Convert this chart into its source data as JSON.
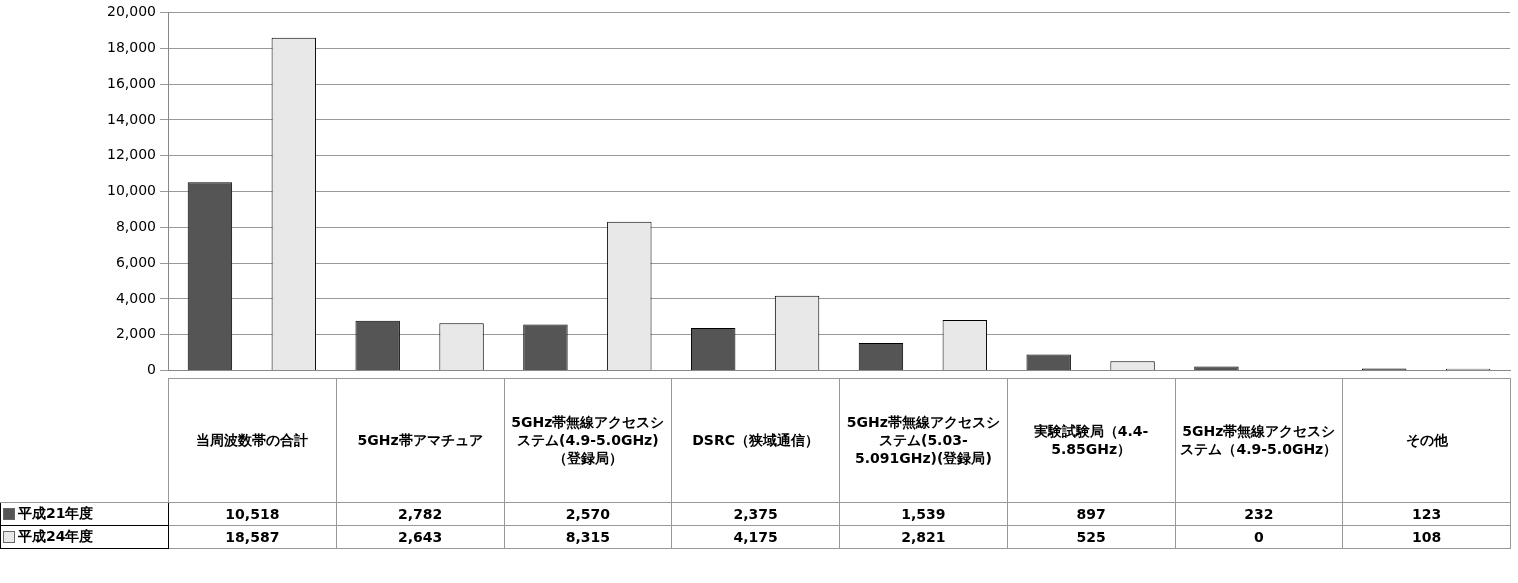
{
  "chart_data": {
    "type": "bar",
    "categories": [
      "当周波数帯の合計",
      "5GHz帯アマチュア",
      "5GHz帯無線アクセスシステム(4.9-5.0GHz)（登録局）",
      "DSRC（狭域通信）",
      "5GHz帯無線アクセスシステム(5.03-5.091GHz)(登録局)",
      "実験試験局（4.4-5.85GHz）",
      "5GHz帯無線アクセスシステム（4.9-5.0GHz）",
      "その他"
    ],
    "series": [
      {
        "name": "平成21年度",
        "color": "#555555",
        "values": [
          10518,
          2782,
          2570,
          2375,
          1539,
          897,
          232,
          123
        ],
        "value_labels": [
          "10,518",
          "2,782",
          "2,570",
          "2,375",
          "1,539",
          "897",
          "232",
          "123"
        ]
      },
      {
        "name": "平成24年度",
        "color": "#e8e8e8",
        "values": [
          18587,
          2643,
          8315,
          4175,
          2821,
          525,
          0,
          108
        ],
        "value_labels": [
          "18,587",
          "2,643",
          "8,315",
          "4,175",
          "2,821",
          "525",
          "0",
          "108"
        ]
      }
    ],
    "ylim": [
      0,
      20000
    ],
    "yticks": [
      {
        "value": 0,
        "label": "0"
      },
      {
        "value": 2000,
        "label": "2,000"
      },
      {
        "value": 4000,
        "label": "4,000"
      },
      {
        "value": 6000,
        "label": "6,000"
      },
      {
        "value": 8000,
        "label": "8,000"
      },
      {
        "value": 10000,
        "label": "10,000"
      },
      {
        "value": 12000,
        "label": "12,000"
      },
      {
        "value": 14000,
        "label": "14,000"
      },
      {
        "value": 16000,
        "label": "16,000"
      },
      {
        "value": 18000,
        "label": "18,000"
      },
      {
        "value": 20000,
        "label": "20,000"
      }
    ],
    "grid": "y",
    "legend": "bottom left"
  }
}
